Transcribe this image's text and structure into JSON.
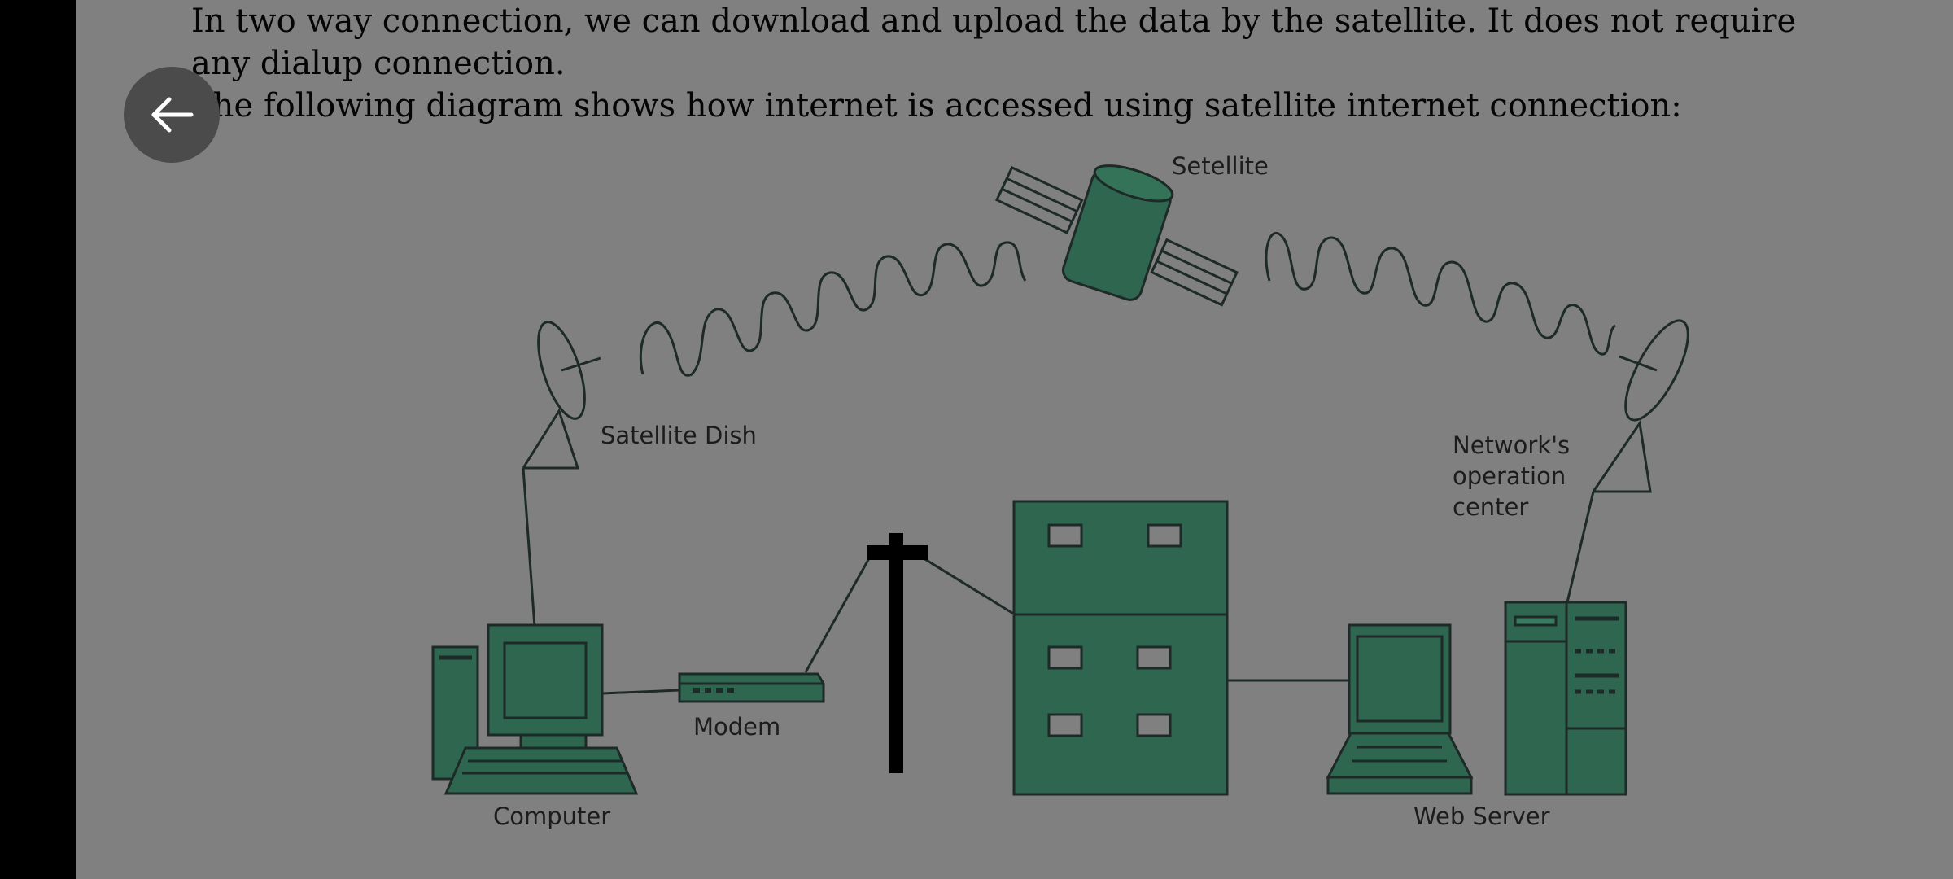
{
  "content": {
    "paragraph1": "In two way connection, we can download and upload the data by the satellite. It does not require any dialup connection.",
    "paragraph2": "The following diagram shows how internet is accessed using satellite internet connection:"
  },
  "nav": {
    "back_icon": "arrow-left-icon"
  },
  "diagram": {
    "labels": {
      "satellite": "Setellite",
      "satellite_dish": "Satellite Dish",
      "network_center_line1": "Network's",
      "network_center_line2": "operation",
      "network_center_line3": "center",
      "modem": "Modem",
      "computer": "Computer",
      "web_server": "Web Server"
    },
    "colors": {
      "equipment": "#2e6650",
      "outline": "#1d2a28",
      "background": "#808080"
    }
  }
}
